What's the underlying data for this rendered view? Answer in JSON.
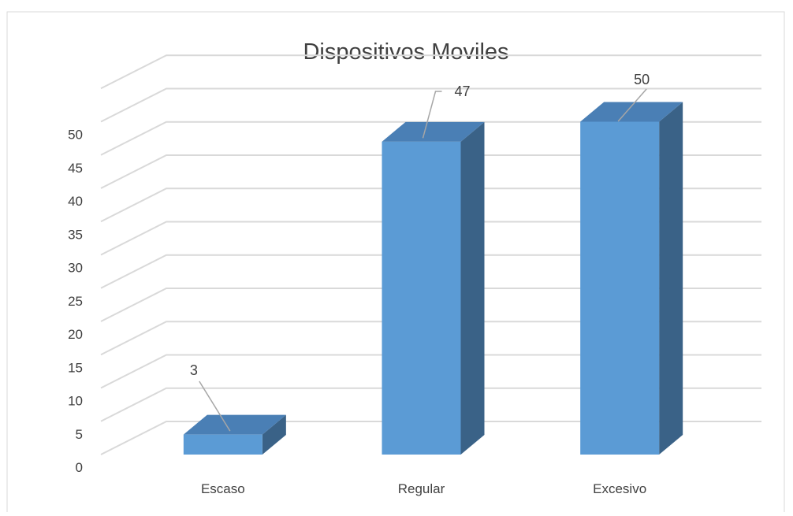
{
  "chart_data": {
    "type": "bar",
    "title": "Dispositivos Moviles",
    "categories": [
      "Escaso",
      "Regular",
      "Excesivo"
    ],
    "values": [
      3,
      47,
      50
    ],
    "data_labels": [
      "3",
      "47",
      "50"
    ],
    "ylim": [
      0,
      50
    ],
    "yticks": [
      "0",
      "5",
      "10",
      "15",
      "20",
      "25",
      "30",
      "35",
      "40",
      "45",
      "50"
    ],
    "grid": true,
    "legend": "none",
    "three_d": true,
    "colors": {
      "bar_front": "#5B9BD5",
      "bar_top": "#4A7FB5",
      "bar_side": "#3A6287",
      "grid": "#D9D9D9",
      "text": "#404040",
      "title": "#404040",
      "border": "#D9D9D9"
    }
  }
}
